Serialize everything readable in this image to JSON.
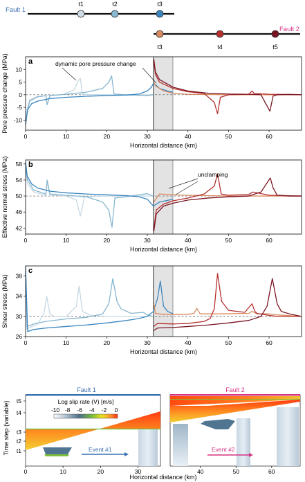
{
  "timeline": {
    "fault1_label": "Fault 1",
    "fault2_label": "Fault 2",
    "fault1_color": "#3a6fb0",
    "fault2_color": "#d63384",
    "fault1_events": [
      {
        "label": "t1",
        "color": "#cfdde6"
      },
      {
        "label": "t2",
        "color": "#8ab8d0"
      },
      {
        "label": "t3",
        "color": "#3a86c0"
      }
    ],
    "fault2_events": [
      {
        "label": "t3",
        "color": "#d98a5e"
      },
      {
        "label": "t4",
        "color": "#b5302e"
      },
      {
        "label": "t5",
        "color": "#7a1422"
      }
    ]
  },
  "chart_data": [
    {
      "panel": "a",
      "type": "line",
      "ylabel": "Pore pressure change (MPa)",
      "xlabel": "Horizontal distance (km)",
      "xlim": [
        0,
        68
      ],
      "ylim": [
        -14,
        15
      ],
      "xticks": [
        0,
        10,
        20,
        30,
        40,
        50,
        60
      ],
      "yticks": [
        -10,
        -5,
        0,
        5,
        10
      ],
      "baseline": 0,
      "shaded_region": [
        31.5,
        36.3
      ],
      "vertical_line": 31.5,
      "annotation": "dynamic pore pressure change",
      "series": [
        {
          "color": "#c5d8e3",
          "x": [
            0,
            1,
            3,
            6,
            9,
            12,
            13.0,
            13.5,
            14,
            16,
            20,
            30,
            31.4
          ],
          "y": [
            -8,
            -2,
            -0.6,
            -0.3,
            0,
            2,
            5.5,
            6.5,
            0.2,
            0,
            0,
            0,
            0
          ]
        },
        {
          "color": "#86b6cf",
          "x": [
            0,
            1,
            3,
            5,
            5.3,
            6,
            10,
            15,
            19,
            20.5,
            21.2,
            21.8,
            24,
            30,
            31.4
          ],
          "y": [
            -10,
            -2.5,
            -0.8,
            -0.4,
            -4,
            -0.3,
            0.2,
            1,
            2.5,
            5,
            7.5,
            0.3,
            0,
            -0.3,
            0
          ]
        },
        {
          "color": "#3a86c0",
          "x": [
            0,
            0.5,
            1.5,
            3,
            6,
            10,
            15,
            20,
            25,
            28,
            30,
            31.0,
            31.5,
            32,
            33,
            35,
            36.3
          ],
          "y": [
            -12,
            -6,
            -3.5,
            -2.5,
            -1.5,
            -1,
            -0.6,
            -0.3,
            -0.1,
            0.3,
            1.5,
            3,
            4.5,
            4,
            2.5,
            1.5,
            1
          ]
        },
        {
          "color": "#d98a5e",
          "x": [
            31.6,
            32,
            34,
            36.3,
            40,
            45,
            50,
            55,
            60,
            65,
            68
          ],
          "y": [
            5,
            3.5,
            1.5,
            0.6,
            0.2,
            0.1,
            0,
            0,
            0,
            0,
            0
          ]
        },
        {
          "color": "#b5302e",
          "x": [
            31.6,
            32,
            33,
            36.3,
            40,
            44,
            46.5,
            47.3,
            48,
            50,
            55,
            55.8,
            56.3,
            60,
            65,
            68
          ],
          "y": [
            13,
            8,
            5,
            2.5,
            1.2,
            0.5,
            -3,
            -7.5,
            -1,
            0,
            0.2,
            1.5,
            0.5,
            0.2,
            0.1,
            0
          ]
        },
        {
          "color": "#7a1422",
          "x": [
            31.6,
            32,
            33,
            36.3,
            40,
            45,
            50,
            55,
            58,
            60.2,
            61,
            62,
            65,
            68
          ],
          "y": [
            14,
            9,
            6,
            3,
            1.5,
            0.6,
            0.3,
            0.2,
            0,
            -6.5,
            -0.5,
            0,
            0.1,
            0
          ]
        }
      ]
    },
    {
      "panel": "b",
      "type": "line",
      "ylabel": "Effective normal stress (MPa)",
      "xlabel": "Horizontal distance (km)",
      "xlim": [
        0,
        68
      ],
      "ylim": [
        40.5,
        59
      ],
      "xticks": [
        0,
        10,
        20,
        30,
        40,
        50,
        60
      ],
      "yticks": [
        42,
        46,
        50,
        54,
        58
      ],
      "baseline": 50,
      "shaded_region": [
        31.5,
        36.3
      ],
      "vertical_line": 31.5,
      "annotation": "unclamping",
      "series": [
        {
          "color": "#c5d8e3",
          "x": [
            0,
            0.5,
            2,
            5,
            5.3,
            6,
            10,
            12.5,
            13.5,
            14.5,
            20,
            30,
            31.4
          ],
          "y": [
            56,
            53,
            51,
            50.2,
            53.5,
            50.3,
            50,
            49,
            45,
            49.8,
            50,
            50,
            50
          ]
        },
        {
          "color": "#86b6cf",
          "x": [
            0,
            0.5,
            2,
            5,
            5.3,
            6,
            10,
            15,
            19,
            20.5,
            21.3,
            22,
            26,
            30,
            31.4
          ],
          "y": [
            57,
            54,
            51.5,
            50.5,
            54,
            50.5,
            50.2,
            49.8,
            48.5,
            46.5,
            42.2,
            49.5,
            50,
            50.6,
            50
          ]
        },
        {
          "color": "#3a86c0",
          "x": [
            0,
            0.4,
            1.5,
            3,
            6,
            10,
            15,
            20,
            25,
            28,
            30,
            31.5,
            33,
            36.3
          ],
          "y": [
            58.5,
            55,
            53,
            52,
            51.2,
            50.8,
            50.5,
            50.3,
            50.1,
            49.8,
            49.2,
            47.5,
            48.5,
            49.2
          ]
        },
        {
          "color": "#d98a5e",
          "x": [
            31.6,
            33,
            36.3,
            40,
            45,
            50,
            60,
            68
          ],
          "y": [
            48.5,
            50.5,
            50.3,
            50.2,
            50.1,
            50,
            50,
            50
          ]
        },
        {
          "color": "#b5302e",
          "x": [
            31.6,
            32.2,
            34,
            36.3,
            40,
            44,
            46.5,
            47.3,
            48.2,
            50,
            55,
            56,
            60,
            68
          ],
          "y": [
            41.8,
            46.5,
            48,
            48.8,
            49.5,
            50.5,
            52.5,
            55.5,
            50.5,
            50.2,
            50.4,
            51,
            50.2,
            50
          ]
        },
        {
          "color": "#7a1422",
          "x": [
            31.6,
            32.2,
            34,
            36.3,
            40,
            45,
            50,
            55,
            58,
            60.3,
            61,
            62,
            65,
            68
          ],
          "y": [
            41.2,
            45.5,
            47.5,
            48.2,
            49,
            49.5,
            49.8,
            50,
            51,
            54.5,
            52,
            50.2,
            50,
            50
          ]
        }
      ]
    },
    {
      "panel": "c",
      "type": "line",
      "ylabel": "Shear stress (MPa)",
      "xlabel": "Horizontal distance (km)",
      "xlim": [
        0,
        68
      ],
      "ylim": [
        26,
        40
      ],
      "xticks": [
        0,
        10,
        20,
        30,
        40,
        50,
        60
      ],
      "yticks": [
        26,
        30,
        34,
        38
      ],
      "baseline": 30,
      "shaded_region": [
        31.5,
        36.3
      ],
      "vertical_line": 31.5,
      "series": [
        {
          "color": "#c5d8e3",
          "x": [
            0,
            0.3,
            1,
            3,
            4.5,
            5.2,
            6,
            7,
            10,
            12.5,
            13.2,
            14,
            16,
            20,
            25,
            30,
            31.4
          ],
          "y": [
            39,
            27.5,
            27.8,
            28.5,
            30.5,
            34,
            30.5,
            30,
            30,
            32,
            36,
            31,
            30.2,
            30,
            30,
            30,
            30
          ]
        },
        {
          "color": "#86b6cf",
          "x": [
            0,
            0.4,
            2,
            5,
            10,
            15,
            19,
            20.5,
            21.5,
            22.5,
            23.5,
            26,
            29,
            30,
            31.4
          ],
          "y": [
            39,
            28,
            28.5,
            29,
            29.5,
            29.8,
            30.5,
            32.5,
            37.5,
            33,
            31.5,
            30.6,
            30.8,
            30.3,
            30
          ]
        },
        {
          "color": "#3a86c0",
          "x": [
            0,
            0.5,
            2,
            5,
            10,
            15,
            20,
            25,
            28,
            30,
            31.5,
            32.5,
            33.2,
            34,
            35,
            36.3
          ],
          "y": [
            40,
            27,
            27.4,
            27.7,
            28,
            28.3,
            28.7,
            29.2,
            29.6,
            30,
            31,
            33.5,
            37,
            32,
            31,
            30.5
          ]
        },
        {
          "color": "#d98a5e",
          "x": [
            31.6,
            32,
            34,
            36.3,
            40,
            41.5,
            42.2,
            43,
            48,
            55,
            55.8,
            57,
            60,
            62,
            68
          ],
          "y": [
            32.5,
            30.6,
            30.4,
            30.4,
            30.4,
            30.6,
            31.6,
            30.5,
            30.5,
            30.6,
            31,
            30.5,
            30.5,
            30.3,
            30
          ]
        },
        {
          "color": "#b5302e",
          "x": [
            31.6,
            32.5,
            36.3,
            40,
            44,
            45.5,
            46.5,
            47.3,
            48.3,
            50,
            54,
            55.8,
            56.5,
            57,
            60,
            62,
            68
          ],
          "y": [
            28,
            28.6,
            28.5,
            28.6,
            29,
            29.6,
            31.5,
            38.5,
            33,
            31.2,
            30.8,
            32.5,
            31,
            30.6,
            30.2,
            30,
            30
          ]
        },
        {
          "color": "#7a1422",
          "x": [
            31.6,
            32.5,
            36.3,
            40,
            45,
            50,
            55,
            58,
            59.5,
            60.8,
            62,
            63,
            65,
            68
          ],
          "y": [
            27.2,
            27.7,
            27.8,
            28,
            28.3,
            28.7,
            29.2,
            30,
            32,
            37.5,
            32.5,
            31,
            30.5,
            30
          ]
        }
      ]
    },
    {
      "panel": "d",
      "type": "heatmap",
      "ylabel": "Time step (variable)",
      "xlabel": "Horizontal distance (km)",
      "colorbar_title": "Log slip rate (V) [m/s]",
      "colorbar_ticks": [
        "-10",
        "-8",
        "-6",
        "-4",
        "-2",
        "0"
      ],
      "colorbar_colors": [
        "#ffffff",
        "#a9bccc",
        "#4c6f88",
        "#7bbf3a",
        "#e8e020",
        "#ff9a2a",
        "#ff3010"
      ],
      "fault1": {
        "title": "Fault 1",
        "xlim": [
          0,
          36
        ],
        "xticks": [
          0,
          10,
          20,
          30
        ],
        "time_ticks": [
          "t1",
          "t2",
          "t3",
          "t4",
          "t5"
        ],
        "arrow_label": "Event #1"
      },
      "fault2": {
        "title": "Fault 2",
        "xlim": [
          31.5,
          68
        ],
        "xticks": [
          40,
          50,
          60
        ],
        "arrow_label": "Event #2"
      }
    }
  ]
}
